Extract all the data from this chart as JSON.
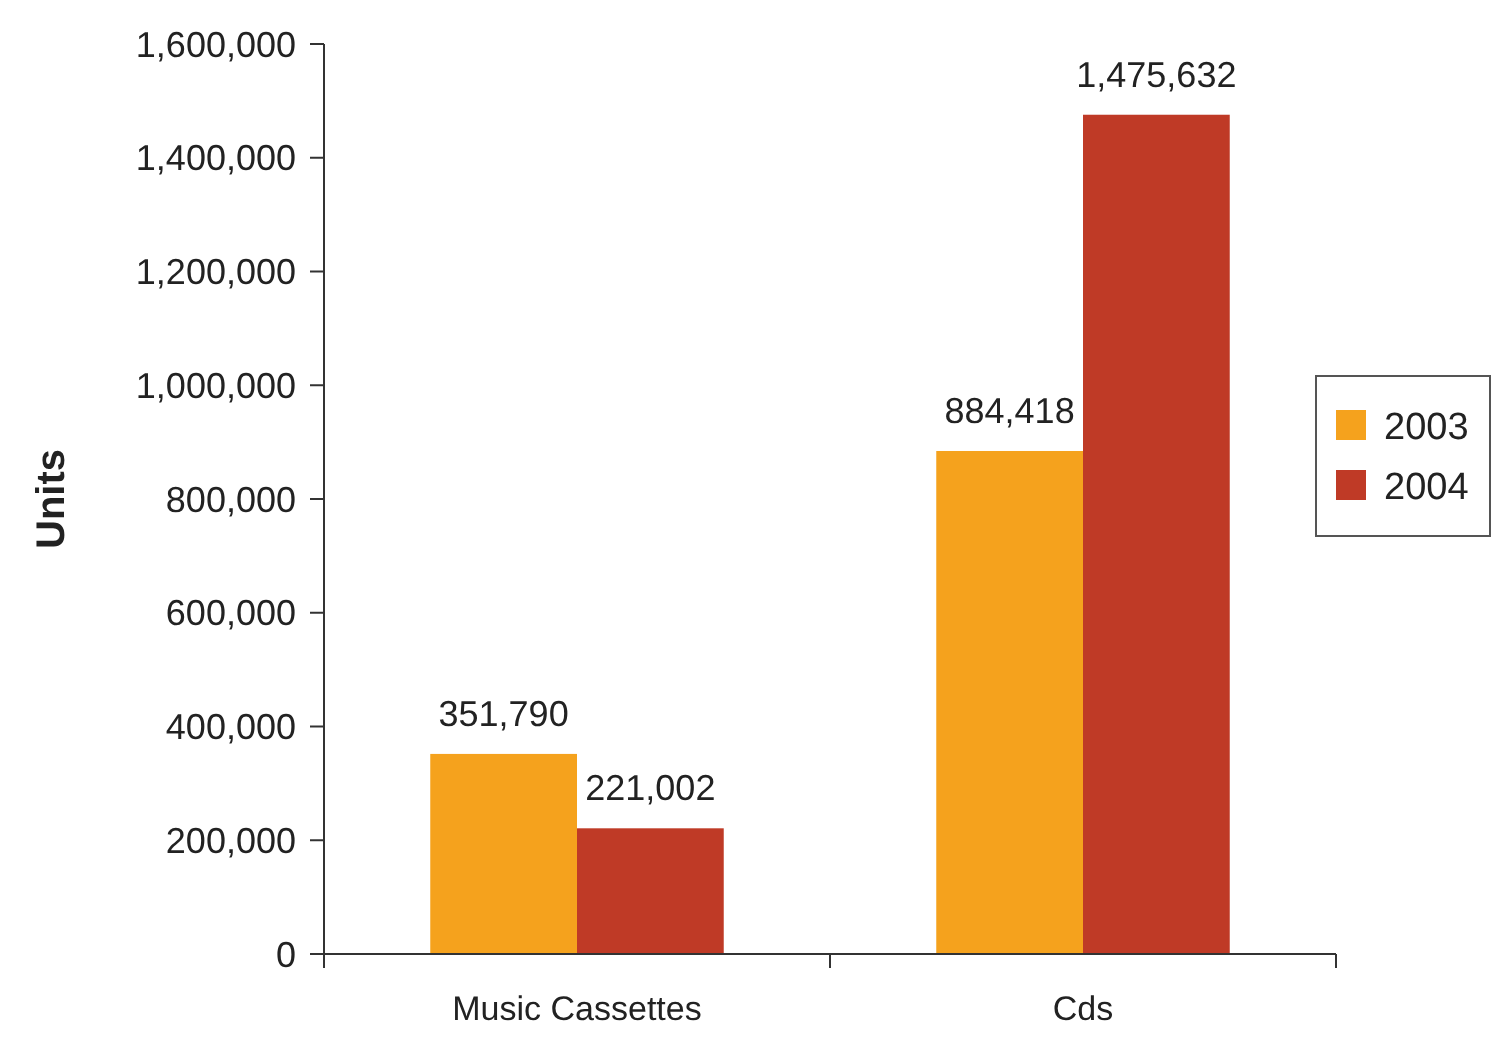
{
  "chart_data": {
    "type": "bar",
    "ylabel": "Units",
    "categories": [
      "Music Cassettes",
      "Cds"
    ],
    "series": [
      {
        "name": "2003",
        "color": "#f5a21d",
        "values": [
          351790,
          884418
        ],
        "value_labels": [
          "351,790",
          "884,418"
        ]
      },
      {
        "name": "2004",
        "color": "#bf3a26",
        "values": [
          221002,
          1475632
        ],
        "value_labels": [
          "221,002",
          "1,475,632"
        ]
      }
    ],
    "ylim": [
      0,
      1600000
    ],
    "yticks": [
      0,
      {
        "value": 200000,
        "label": "200,000"
      },
      {
        "value": 400000,
        "label": "400,000"
      },
      {
        "value": 600000,
        "label": "600,000"
      },
      {
        "value": 800000,
        "label": "800,000"
      },
      {
        "value": 1000000,
        "label": "1,000,000"
      },
      {
        "value": 1200000,
        "label": "1,200,000"
      },
      {
        "value": 1400000,
        "label": "1,400,000"
      },
      {
        "value": 1600000,
        "label": "1,600,000"
      }
    ],
    "legend": "right",
    "grid": false
  }
}
